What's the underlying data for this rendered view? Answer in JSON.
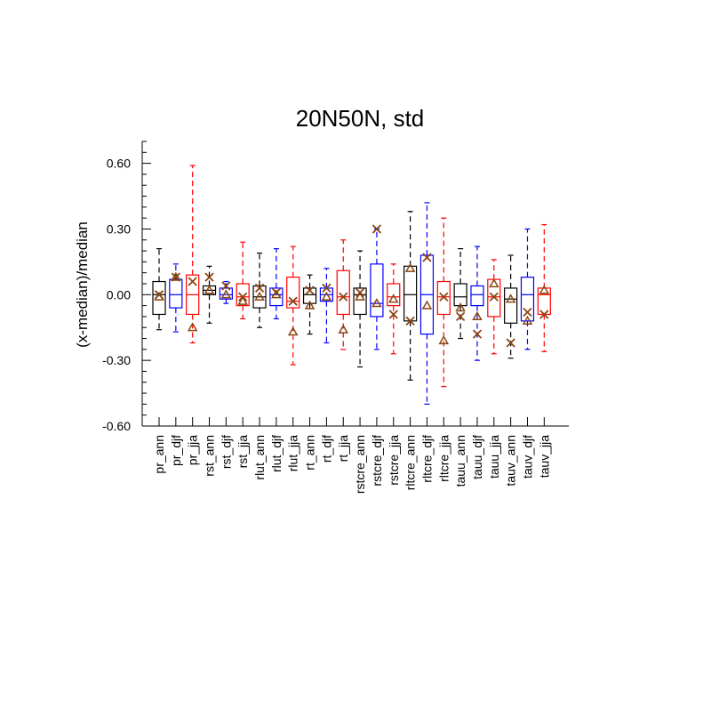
{
  "chart_data": {
    "type": "box",
    "title": "20N50N, std",
    "xlabel": "",
    "ylabel": "(x-median)/median",
    "ylim": [
      -0.6,
      0.7
    ],
    "yticks": [
      -0.6,
      -0.3,
      0.0,
      0.3,
      0.6
    ],
    "ytick_labels": [
      "-0.60",
      "-0.30",
      "0.00",
      "0.30",
      "0.60"
    ],
    "colors": {
      "black": "#000000",
      "blue": "#0000ff",
      "red": "#ff0000",
      "marker": "#8b4513"
    },
    "boxes": [
      {
        "label": "pr_ann",
        "color": "black",
        "lower": -0.16,
        "q1": -0.09,
        "median": 0.0,
        "q3": 0.06,
        "upper": 0.21,
        "cross": 0.0,
        "triangle": -0.01
      },
      {
        "label": "pr_djf",
        "color": "blue",
        "lower": -0.17,
        "q1": -0.06,
        "median": 0.0,
        "q3": 0.07,
        "upper": 0.14,
        "cross": 0.08,
        "triangle": 0.08
      },
      {
        "label": "pr_jja",
        "color": "red",
        "lower": -0.22,
        "q1": -0.09,
        "median": 0.0,
        "q3": 0.09,
        "upper": 0.59,
        "cross": 0.06,
        "triangle": -0.15
      },
      {
        "label": "rst_ann",
        "color": "black",
        "lower": -0.13,
        "q1": 0.0,
        "median": 0.02,
        "q3": 0.04,
        "upper": 0.13,
        "cross": 0.08,
        "triangle": 0.02
      },
      {
        "label": "rst_djf",
        "color": "blue",
        "lower": -0.04,
        "q1": -0.02,
        "median": 0.0,
        "q3": 0.03,
        "upper": 0.06,
        "cross": 0.04,
        "triangle": 0.0
      },
      {
        "label": "rst_jja",
        "color": "red",
        "lower": -0.11,
        "q1": -0.05,
        "median": -0.01,
        "q3": 0.05,
        "upper": 0.24,
        "cross": -0.01,
        "triangle": -0.03
      },
      {
        "label": "rlut_ann",
        "color": "black",
        "lower": -0.15,
        "q1": -0.06,
        "median": -0.01,
        "q3": 0.04,
        "upper": 0.19,
        "cross": 0.03,
        "triangle": -0.01
      },
      {
        "label": "rlut_djf",
        "color": "blue",
        "lower": -0.11,
        "q1": -0.05,
        "median": 0.0,
        "q3": 0.03,
        "upper": 0.21,
        "cross": 0.01,
        "triangle": 0.0
      },
      {
        "label": "rlut_jja",
        "color": "red",
        "lower": -0.32,
        "q1": -0.06,
        "median": -0.03,
        "q3": 0.08,
        "upper": 0.22,
        "cross": -0.03,
        "triangle": -0.17
      },
      {
        "label": "rt_ann",
        "color": "black",
        "lower": -0.18,
        "q1": -0.04,
        "median": 0.0,
        "q3": 0.03,
        "upper": 0.09,
        "cross": 0.02,
        "triangle": -0.05
      },
      {
        "label": "rt_djf",
        "color": "blue",
        "lower": -0.22,
        "q1": -0.03,
        "median": 0.0,
        "q3": 0.03,
        "upper": 0.12,
        "cross": 0.03,
        "triangle": -0.01
      },
      {
        "label": "rt_jja",
        "color": "red",
        "lower": -0.25,
        "q1": -0.09,
        "median": -0.01,
        "q3": 0.11,
        "upper": 0.25,
        "cross": -0.01,
        "triangle": -0.16
      },
      {
        "label": "rstcre_ann",
        "color": "black",
        "lower": -0.33,
        "q1": -0.09,
        "median": 0.0,
        "q3": 0.03,
        "upper": 0.2,
        "cross": 0.01,
        "triangle": -0.01
      },
      {
        "label": "rstcre_djf",
        "color": "blue",
        "lower": -0.25,
        "q1": -0.1,
        "median": -0.04,
        "q3": 0.14,
        "upper": 0.3,
        "cross": 0.3,
        "triangle": -0.04
      },
      {
        "label": "rstcre_jja",
        "color": "red",
        "lower": -0.27,
        "q1": -0.05,
        "median": -0.01,
        "q3": 0.05,
        "upper": 0.14,
        "cross": -0.09,
        "triangle": -0.02
      },
      {
        "label": "rltcre_ann",
        "color": "black",
        "lower": -0.39,
        "q1": -0.12,
        "median": 0.0,
        "q3": 0.13,
        "upper": 0.38,
        "cross": -0.12,
        "triangle": 0.12
      },
      {
        "label": "rltcre_djf",
        "color": "blue",
        "lower": -0.5,
        "q1": -0.18,
        "median": 0.0,
        "q3": 0.18,
        "upper": 0.42,
        "cross": 0.17,
        "triangle": -0.05
      },
      {
        "label": "rltcre_jja",
        "color": "red",
        "lower": -0.42,
        "q1": -0.09,
        "median": -0.01,
        "q3": 0.06,
        "upper": 0.35,
        "cross": -0.01,
        "triangle": -0.21
      },
      {
        "label": "tauu_ann",
        "color": "black",
        "lower": -0.2,
        "q1": -0.05,
        "median": -0.01,
        "q3": 0.05,
        "upper": 0.21,
        "cross": -0.1,
        "triangle": -0.06
      },
      {
        "label": "tauu_djf",
        "color": "blue",
        "lower": -0.3,
        "q1": -0.05,
        "median": 0.0,
        "q3": 0.04,
        "upper": 0.22,
        "cross": -0.18,
        "triangle": -0.1
      },
      {
        "label": "tauu_jja",
        "color": "red",
        "lower": -0.27,
        "q1": -0.1,
        "median": -0.01,
        "q3": 0.07,
        "upper": 0.16,
        "cross": -0.01,
        "triangle": 0.05
      },
      {
        "label": "tauv_ann",
        "color": "black",
        "lower": -0.29,
        "q1": -0.13,
        "median": -0.02,
        "q3": 0.03,
        "upper": 0.18,
        "cross": -0.22,
        "triangle": -0.02
      },
      {
        "label": "tauv_djf",
        "color": "blue",
        "lower": -0.25,
        "q1": -0.12,
        "median": 0.0,
        "q3": 0.08,
        "upper": 0.3,
        "cross": -0.08,
        "triangle": -0.12
      },
      {
        "label": "tauv_jja",
        "color": "red",
        "lower": -0.26,
        "q1": -0.09,
        "median": 0.0,
        "q3": 0.03,
        "upper": 0.32,
        "cross": -0.09,
        "triangle": 0.02
      }
    ]
  }
}
